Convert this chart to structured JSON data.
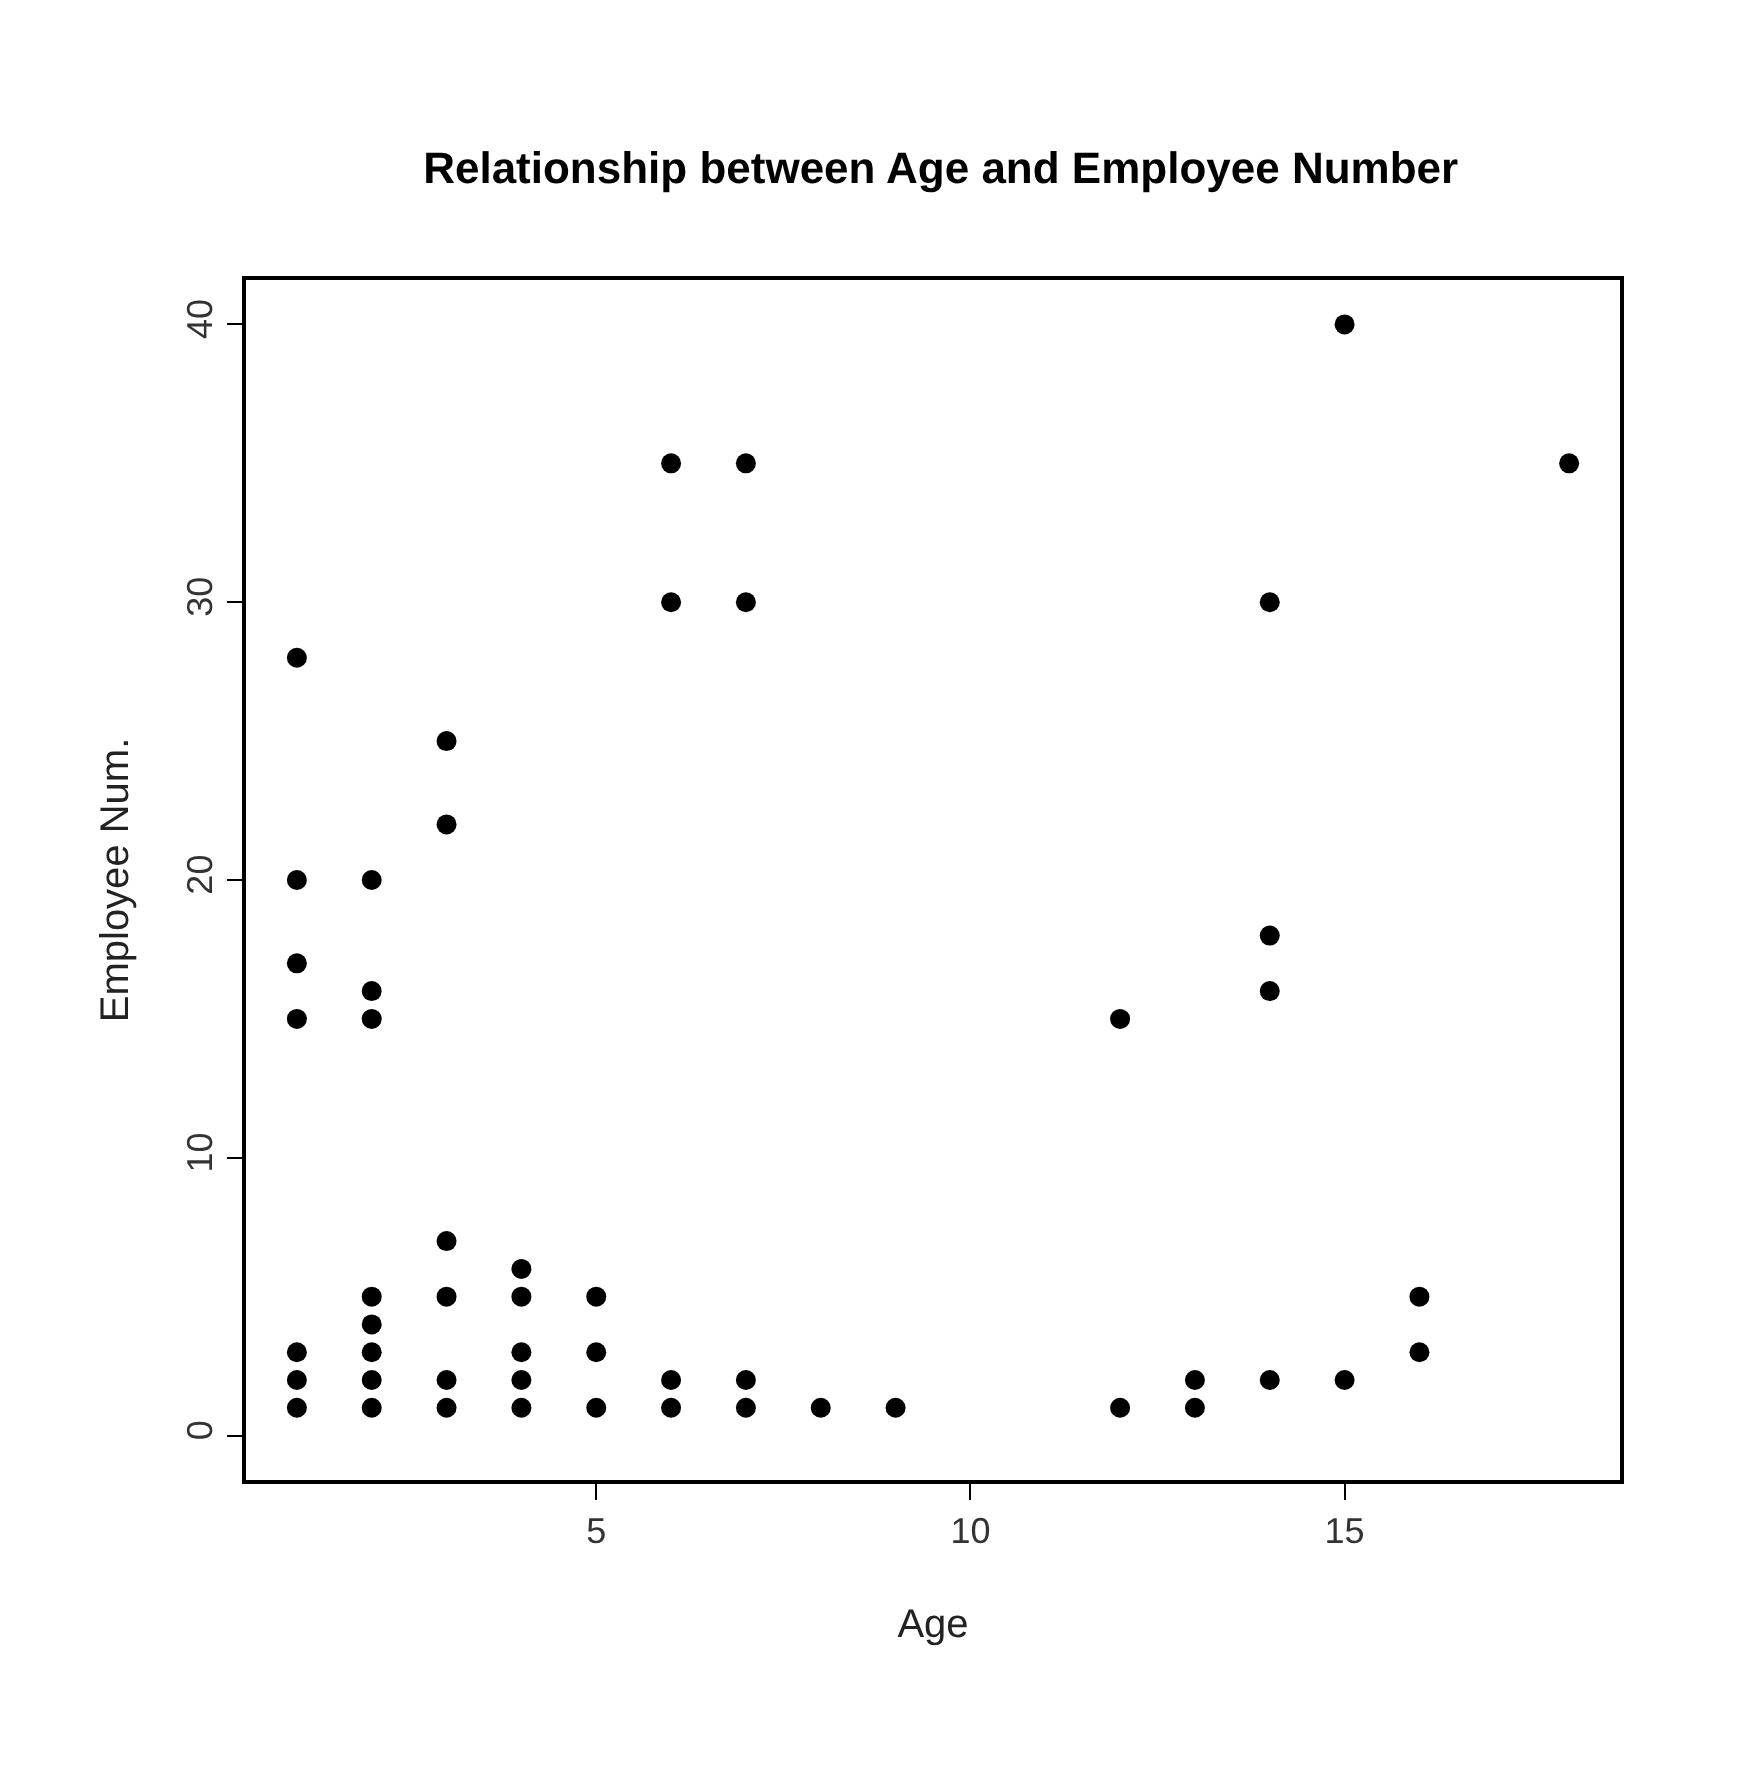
{
  "chart_data": {
    "type": "scatter",
    "title": "Relationship between Age and Employee Number",
    "xlabel": "Age",
    "ylabel": "Employee Num.",
    "x": [
      1,
      1,
      1,
      1,
      1,
      1,
      1,
      2,
      2,
      2,
      2,
      2,
      2,
      2,
      2,
      3,
      3,
      3,
      3,
      3,
      3,
      4,
      4,
      4,
      4,
      4,
      5,
      5,
      5,
      6,
      6,
      6,
      6,
      7,
      7,
      7,
      7,
      8,
      9,
      12,
      12,
      13,
      13,
      14,
      14,
      14,
      14,
      15,
      15,
      16,
      16,
      18
    ],
    "values": [
      1,
      2,
      3,
      15,
      17,
      20,
      28,
      1,
      2,
      3,
      4,
      5,
      15,
      16,
      20,
      1,
      2,
      5,
      7,
      22,
      25,
      1,
      2,
      3,
      5,
      6,
      1,
      3,
      5,
      1,
      2,
      30,
      35,
      1,
      2,
      30,
      35,
      1,
      1,
      1,
      15,
      1,
      2,
      2,
      16,
      18,
      30,
      2,
      40,
      3,
      5,
      35
    ],
    "color": "#000000",
    "marker": "circle",
    "xlim": [
      0.32,
      18.68
    ],
    "xticks": [
      5,
      10,
      15
    ],
    "ylim": [
      -1.6,
      41.6
    ],
    "yticks": [
      0,
      10,
      20,
      30,
      40
    ],
    "legend": false
  }
}
